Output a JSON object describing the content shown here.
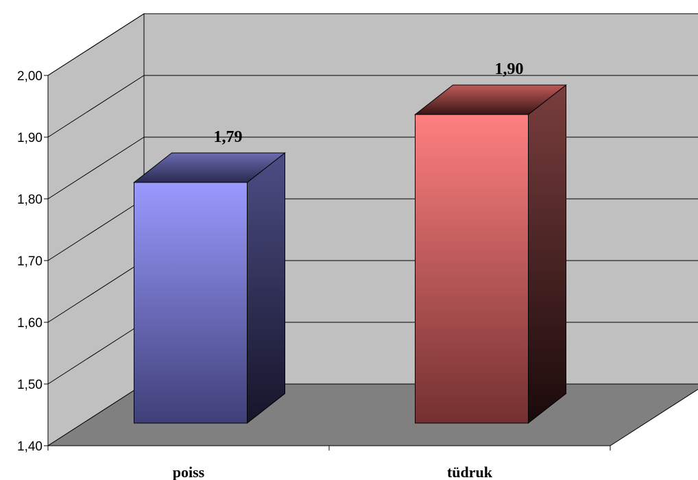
{
  "chart_data": {
    "type": "bar",
    "title": "",
    "xlabel": "",
    "ylabel": "",
    "categories": [
      "poiss",
      "tüdruk"
    ],
    "values": [
      1.79,
      1.9
    ],
    "data_labels": [
      "1,79",
      "1,90"
    ],
    "ylim": [
      1.4,
      2.0
    ],
    "yticks": [
      1.4,
      1.5,
      1.6,
      1.7,
      1.8,
      1.9,
      2.0
    ],
    "ytick_labels": [
      "1,40",
      "1,50",
      "1,60",
      "1,70",
      "1,80",
      "1,90",
      "2,00"
    ],
    "grid": true,
    "legend": "none",
    "style": "3d-column",
    "colors": {
      "series": [
        "#9999ff",
        "#ff8080"
      ],
      "back_wall": "#c0c0c0",
      "side_wall": "#c0c0c0",
      "floor": "#808080"
    }
  }
}
